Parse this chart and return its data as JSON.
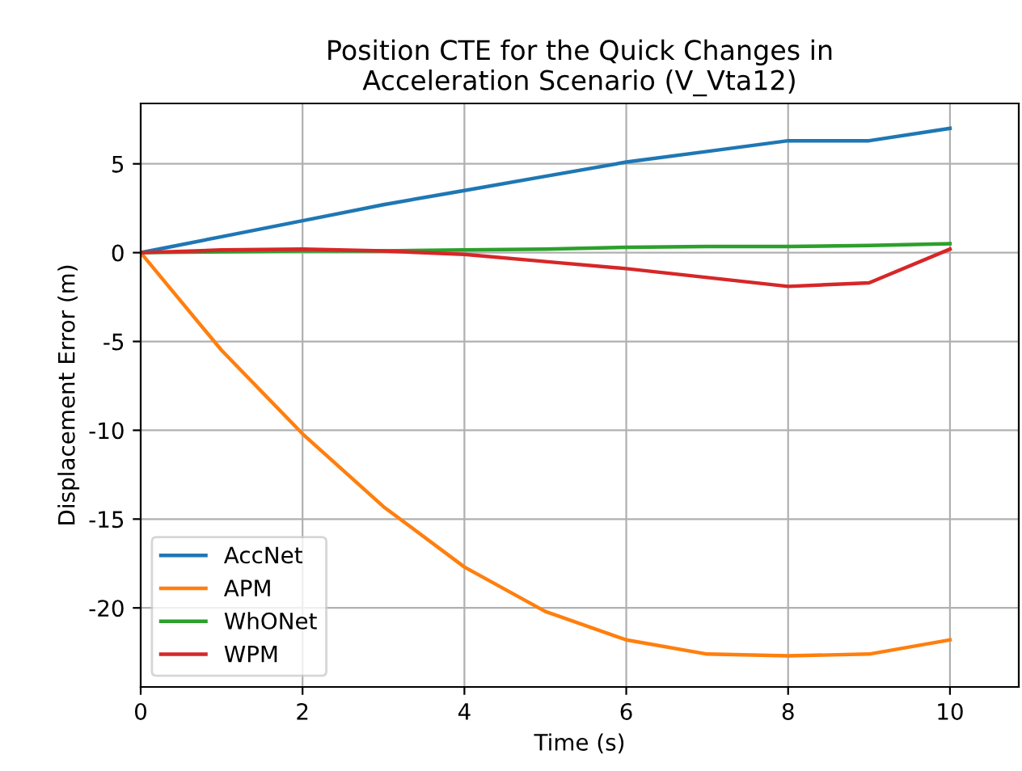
{
  "chart_data": {
    "type": "line",
    "title": "Position CTE for the Quick Changes in\nAcceleration Scenario (V_Vta12)",
    "xlabel": "Time (s)",
    "ylabel": "Displacement Error (m)",
    "x": [
      0,
      1,
      2,
      3,
      4,
      5,
      6,
      7,
      8,
      9,
      10
    ],
    "series": [
      {
        "name": "AccNet",
        "color": "#1f77b4",
        "values": [
          0,
          0.9,
          1.8,
          2.7,
          3.5,
          4.3,
          5.1,
          5.7,
          6.3,
          6.3,
          7.0
        ]
      },
      {
        "name": "APM",
        "color": "#ff7f0e",
        "values": [
          0,
          -5.5,
          -10.2,
          -14.3,
          -17.7,
          -20.2,
          -21.8,
          -22.6,
          -22.7,
          -22.6,
          -21.8
        ]
      },
      {
        "name": "WhONet",
        "color": "#2ca02c",
        "values": [
          0,
          0.05,
          0.1,
          0.1,
          0.15,
          0.2,
          0.3,
          0.35,
          0.35,
          0.4,
          0.5
        ]
      },
      {
        "name": "WPM",
        "color": "#d62728",
        "values": [
          0,
          0.15,
          0.2,
          0.1,
          -0.1,
          -0.5,
          -0.9,
          -1.4,
          -1.9,
          -1.7,
          0.2
        ]
      }
    ],
    "xlim": [
      0,
      10.85
    ],
    "ylim": [
      -24.45,
      8.4
    ],
    "xticks": [
      0,
      2,
      4,
      6,
      8,
      10
    ],
    "yticks": [
      -20,
      -15,
      -10,
      -5,
      0,
      5
    ],
    "grid": true,
    "legend": "bottom left",
    "marker": "none",
    "line_style": "solid"
  }
}
